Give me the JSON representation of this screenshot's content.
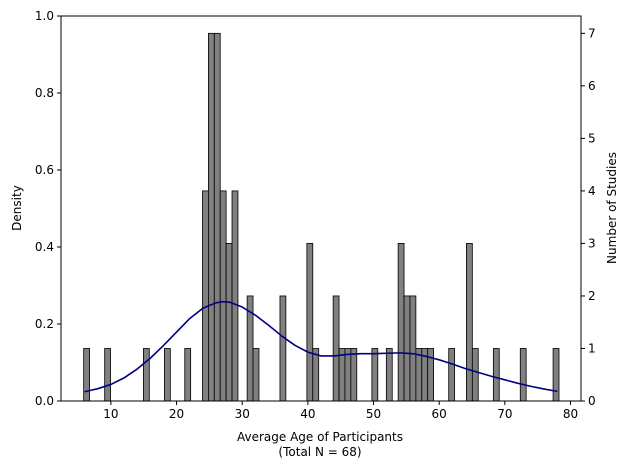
{
  "chart_data": {
    "type": "bar",
    "xlabel": "Average Age of Participants",
    "xlabel_line2": "(Total N = 68)",
    "ylabel_left": "Density",
    "ylabel_right": "Number of Studies",
    "xlim": [
      2.4,
      81.6
    ],
    "ylim_left": [
      0,
      1.0
    ],
    "ylim_right": [
      0,
      7.33
    ],
    "x_ticks": [
      10,
      20,
      30,
      40,
      50,
      60,
      70,
      80
    ],
    "y_ticks_left": [
      "0.0",
      "0.2",
      "0.4",
      "0.6",
      "0.8",
      "1.0"
    ],
    "y_ticks_right": [
      0,
      1,
      2,
      3,
      4,
      5,
      6,
      7
    ],
    "bar_color": "#808080",
    "bar_edge_color": "#000000",
    "kde_color": "#000080",
    "bin_width": 0.9,
    "bars": [
      {
        "x": 6.3,
        "count": 1
      },
      {
        "x": 9.5,
        "count": 1
      },
      {
        "x": 15.4,
        "count": 1
      },
      {
        "x": 18.6,
        "count": 1
      },
      {
        "x": 21.7,
        "count": 1
      },
      {
        "x": 24.4,
        "count": 4
      },
      {
        "x": 25.3,
        "count": 7
      },
      {
        "x": 26.2,
        "count": 7
      },
      {
        "x": 27.1,
        "count": 4
      },
      {
        "x": 28.0,
        "count": 3
      },
      {
        "x": 28.9,
        "count": 4
      },
      {
        "x": 31.2,
        "count": 2
      },
      {
        "x": 32.1,
        "count": 1
      },
      {
        "x": 36.2,
        "count": 2
      },
      {
        "x": 40.3,
        "count": 3
      },
      {
        "x": 41.2,
        "count": 1
      },
      {
        "x": 44.3,
        "count": 2
      },
      {
        "x": 45.2,
        "count": 1
      },
      {
        "x": 46.1,
        "count": 1
      },
      {
        "x": 47.0,
        "count": 1
      },
      {
        "x": 50.2,
        "count": 1
      },
      {
        "x": 52.4,
        "count": 1
      },
      {
        "x": 54.2,
        "count": 3
      },
      {
        "x": 55.1,
        "count": 2
      },
      {
        "x": 56.0,
        "count": 2
      },
      {
        "x": 56.9,
        "count": 1
      },
      {
        "x": 57.8,
        "count": 1
      },
      {
        "x": 58.7,
        "count": 1
      },
      {
        "x": 61.9,
        "count": 1
      },
      {
        "x": 64.6,
        "count": 3
      },
      {
        "x": 65.5,
        "count": 1
      },
      {
        "x": 68.7,
        "count": 1
      },
      {
        "x": 72.8,
        "count": 1
      },
      {
        "x": 77.8,
        "count": 1
      }
    ],
    "kde": {
      "x": [
        6,
        8,
        10,
        12,
        14,
        16,
        18,
        20,
        22,
        24,
        26,
        27,
        28,
        30,
        32,
        34,
        36,
        38,
        40,
        42,
        44,
        46,
        48,
        50,
        52,
        54,
        56,
        58,
        60,
        62,
        64,
        66,
        68,
        70,
        72,
        74,
        76,
        78
      ],
      "density": [
        0.024,
        0.032,
        0.043,
        0.06,
        0.083,
        0.111,
        0.144,
        0.179,
        0.214,
        0.241,
        0.255,
        0.258,
        0.257,
        0.244,
        0.223,
        0.197,
        0.169,
        0.145,
        0.127,
        0.117,
        0.117,
        0.121,
        0.123,
        0.123,
        0.124,
        0.125,
        0.123,
        0.116,
        0.107,
        0.096,
        0.084,
        0.074,
        0.064,
        0.055,
        0.046,
        0.038,
        0.031,
        0.025
      ]
    }
  }
}
